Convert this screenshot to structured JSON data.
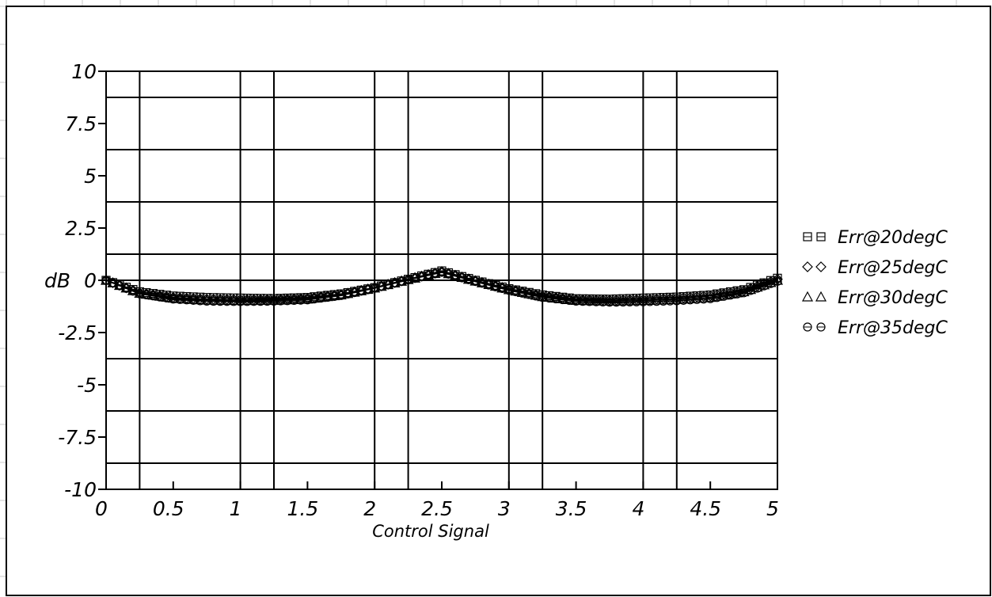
{
  "chart_data": {
    "type": "line",
    "xlabel": "Control Signal",
    "ylabel": "dB",
    "xlim": [
      0,
      5
    ],
    "ylim": [
      -10,
      10
    ],
    "x_tick_labels": [
      "0",
      "0.5",
      "1",
      "1.5",
      "2",
      "2.5",
      "3",
      "3.5",
      "4",
      "4.5",
      "5"
    ],
    "y_tick_labels": [
      "10",
      "7.5",
      "5",
      "2.5",
      "0",
      "-2.5",
      "-5",
      "-7.5",
      "-10"
    ],
    "grid": true,
    "legend_position": "right",
    "x": [
      0,
      0.25,
      0.5,
      0.75,
      1,
      1.25,
      1.5,
      1.75,
      2,
      2.25,
      2.5,
      2.75,
      3,
      3.25,
      3.5,
      3.75,
      4,
      4.25,
      4.5,
      4.75,
      5
    ],
    "series": [
      {
        "name": "Err@20degC",
        "marker": "square",
        "values": [
          0,
          -0.55,
          -0.75,
          -0.82,
          -0.85,
          -0.87,
          -0.82,
          -0.65,
          -0.35,
          0.05,
          0.45,
          0.0,
          -0.4,
          -0.7,
          -0.88,
          -0.9,
          -0.85,
          -0.8,
          -0.7,
          -0.45,
          0.1
        ]
      },
      {
        "name": "Err@25degC",
        "marker": "diamond",
        "values": [
          0,
          -0.6,
          -0.82,
          -0.9,
          -0.92,
          -0.92,
          -0.86,
          -0.68,
          -0.35,
          0.05,
          0.42,
          -0.02,
          -0.42,
          -0.75,
          -0.92,
          -0.95,
          -0.92,
          -0.86,
          -0.75,
          -0.5,
          0.05
        ]
      },
      {
        "name": "Err@30degC",
        "marker": "triangle",
        "values": [
          0,
          -0.62,
          -0.86,
          -0.95,
          -0.97,
          -0.96,
          -0.9,
          -0.7,
          -0.37,
          0.03,
          0.4,
          -0.04,
          -0.45,
          -0.78,
          -0.96,
          -1.0,
          -0.97,
          -0.92,
          -0.82,
          -0.55,
          0.0
        ]
      },
      {
        "name": "Err@35degC",
        "marker": "circle",
        "values": [
          0,
          -0.65,
          -0.9,
          -1.0,
          -1.02,
          -1.0,
          -0.94,
          -0.73,
          -0.38,
          0.02,
          0.38,
          -0.06,
          -0.48,
          -0.82,
          -1.0,
          -1.05,
          -1.03,
          -0.98,
          -0.88,
          -0.6,
          -0.05
        ]
      }
    ]
  }
}
